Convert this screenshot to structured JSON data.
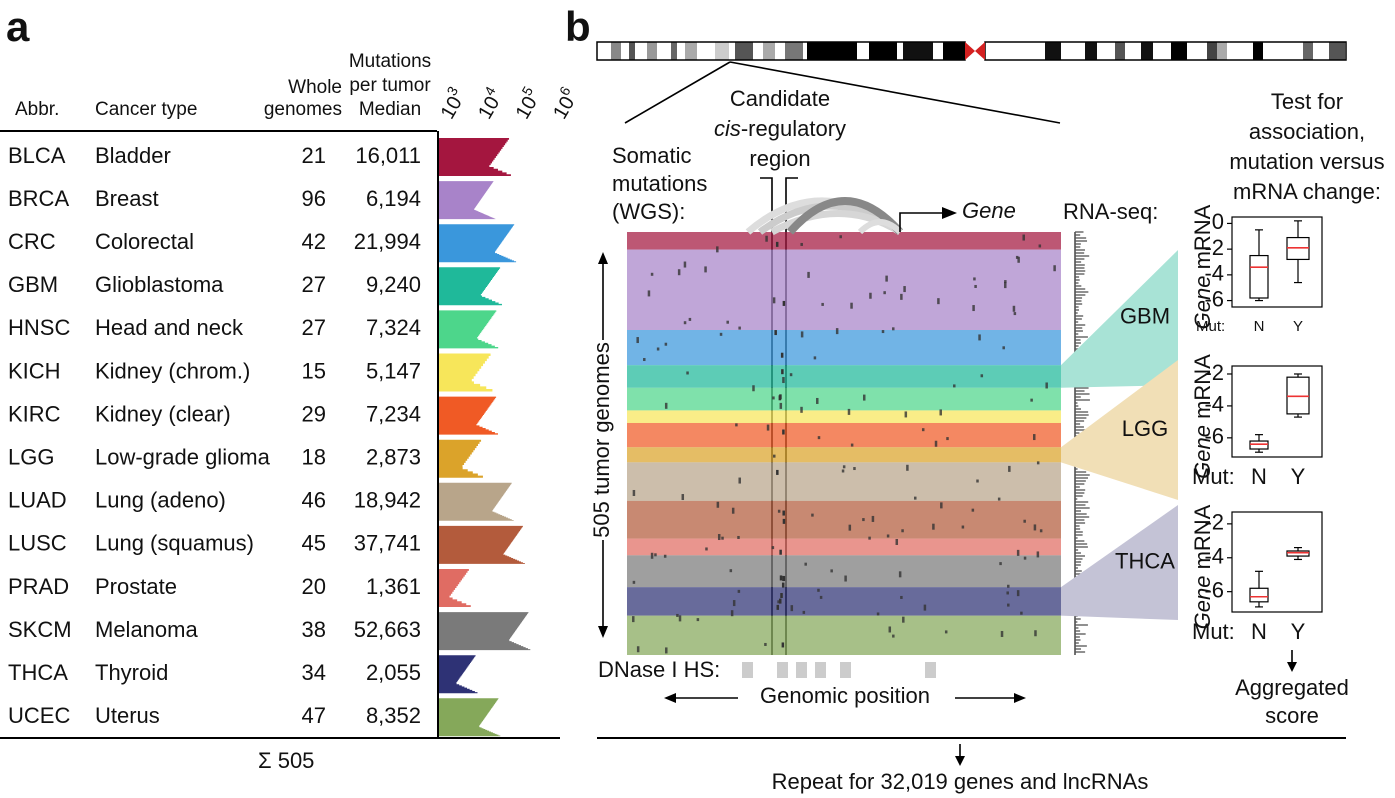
{
  "panel_a": {
    "label": "a",
    "headers": {
      "abbr": "Abbr.",
      "cancer_type": "Cancer type",
      "genomes": [
        "Whole",
        "genomes"
      ],
      "median": [
        "Mutations",
        "per tumor",
        "Median"
      ]
    },
    "axis_ticks": [
      {
        "base": "10",
        "exponent": "3"
      },
      {
        "base": "10",
        "exponent": "4"
      },
      {
        "base": "10",
        "exponent": "5"
      },
      {
        "base": "10",
        "exponent": "6"
      }
    ],
    "rows": [
      {
        "abbr": "BLCA",
        "type": "Bladder",
        "genomes": 21,
        "median": "16,011",
        "color": "#a4163f"
      },
      {
        "abbr": "BRCA",
        "type": "Breast",
        "genomes": 96,
        "median": "6,194",
        "color": "#a883c9"
      },
      {
        "abbr": "CRC",
        "type": "Colorectal",
        "genomes": 42,
        "median": "21,994",
        "color": "#3a97dc"
      },
      {
        "abbr": "GBM",
        "type": "Glioblastoma",
        "genomes": 27,
        "median": "9,240",
        "color": "#1fb99a"
      },
      {
        "abbr": "HNSC",
        "type": "Head and neck",
        "genomes": 27,
        "median": "7,324",
        "color": "#4dd68b"
      },
      {
        "abbr": "KICH",
        "type": "Kidney (chrom.)",
        "genomes": 15,
        "median": "5,147",
        "color": "#f7e65a"
      },
      {
        "abbr": "KIRC",
        "type": "Kidney (clear)",
        "genomes": 29,
        "median": "7,234",
        "color": "#f05a25"
      },
      {
        "abbr": "LGG",
        "type": "Low-grade glioma",
        "genomes": 18,
        "median": "2,873",
        "color": "#dba32a"
      },
      {
        "abbr": "LUAD",
        "type": "Lung (adeno)",
        "genomes": 46,
        "median": "18,942",
        "color": "#b8a58a"
      },
      {
        "abbr": "LUSC",
        "type": "Lung (squamus)",
        "genomes": 45,
        "median": "37,741",
        "color": "#b35b3c"
      },
      {
        "abbr": "PRAD",
        "type": "Prostate",
        "genomes": 20,
        "median": "1,361",
        "color": "#e06c63"
      },
      {
        "abbr": "SKCM",
        "type": "Melanoma",
        "genomes": 38,
        "median": "52,663",
        "color": "#7a7a7a"
      },
      {
        "abbr": "THCA",
        "type": "Thyroid",
        "genomes": 34,
        "median": "2,055",
        "color": "#2e3275"
      },
      {
        "abbr": "UCEC",
        "type": "Uterus",
        "genomes": 47,
        "median": "8,352",
        "color": "#85a85a"
      }
    ],
    "total": "Σ 505"
  },
  "panel_b": {
    "label": "b",
    "region_label": {
      "line1": "Candidate",
      "line2_italic": "cis",
      "line2_rest": "-regulatory",
      "line3": "region"
    },
    "mutations_label": [
      "Somatic",
      "mutations",
      "(WGS):"
    ],
    "gene_label": "Gene",
    "rnaseq_label": "RNA-seq:",
    "genomes_label": "505 tumor genomes",
    "dnase_label": "DNase I HS:",
    "position_label": "Genomic position",
    "test_label": [
      "Test for",
      "association,",
      "mutation versus",
      "mRNA change:"
    ],
    "boxplots": [
      {
        "cancer": "GBM",
        "color": "#a8e3d6",
        "y_label": {
          "italic": "Gene",
          "rest": " mRNA"
        },
        "mut_label": "Mut:",
        "ylim": [
          -6.5,
          0.5
        ],
        "yticks": [
          0,
          -2,
          -4,
          -6
        ],
        "groups": [
          {
            "name": "N",
            "whisker_low": -6,
            "q1": -5.8,
            "median": -3.4,
            "q3": -2.5,
            "whisker_high": -0.5
          },
          {
            "name": "Y",
            "whisker_low": -4.6,
            "q1": -2.8,
            "median": -1.9,
            "q3": -1.1,
            "whisker_high": 0.2
          }
        ]
      },
      {
        "cancer": "LGG",
        "color": "#f1dfb6",
        "y_label": {
          "italic": "Gene",
          "rest": " mRNA"
        },
        "mut_label": "Mut:",
        "ylim": [
          -7.2,
          -1.5
        ],
        "yticks": [
          -2,
          -4,
          -6
        ],
        "groups": [
          {
            "name": "N",
            "whisker_low": -6.9,
            "q1": -6.7,
            "median": -6.4,
            "q3": -6.2,
            "whisker_high": -5.8
          },
          {
            "name": "Y",
            "whisker_low": -4.7,
            "q1": -4.5,
            "median": -3.4,
            "q3": -2.2,
            "whisker_high": -2
          }
        ]
      },
      {
        "cancer": "THCA",
        "color": "#c4c3d6",
        "y_label": {
          "italic": "Gene",
          "rest": " mRNA"
        },
        "mut_label": "Mut:",
        "ylim": [
          -7.2,
          -1.3
        ],
        "yticks": [
          -2,
          -4,
          -6
        ],
        "groups": [
          {
            "name": "N",
            "whisker_low": -6.9,
            "q1": -6.6,
            "median": -6.3,
            "q3": -5.8,
            "whisker_high": -4.8
          },
          {
            "name": "Y",
            "whisker_low": -4.1,
            "q1": -3.9,
            "median": -3.7,
            "q3": -3.6,
            "whisker_high": -3.4
          }
        ]
      }
    ],
    "aggregated_label": [
      "Aggregated",
      "score"
    ],
    "repeat_label": "Repeat for 32,019 genes and lncRNAs"
  }
}
